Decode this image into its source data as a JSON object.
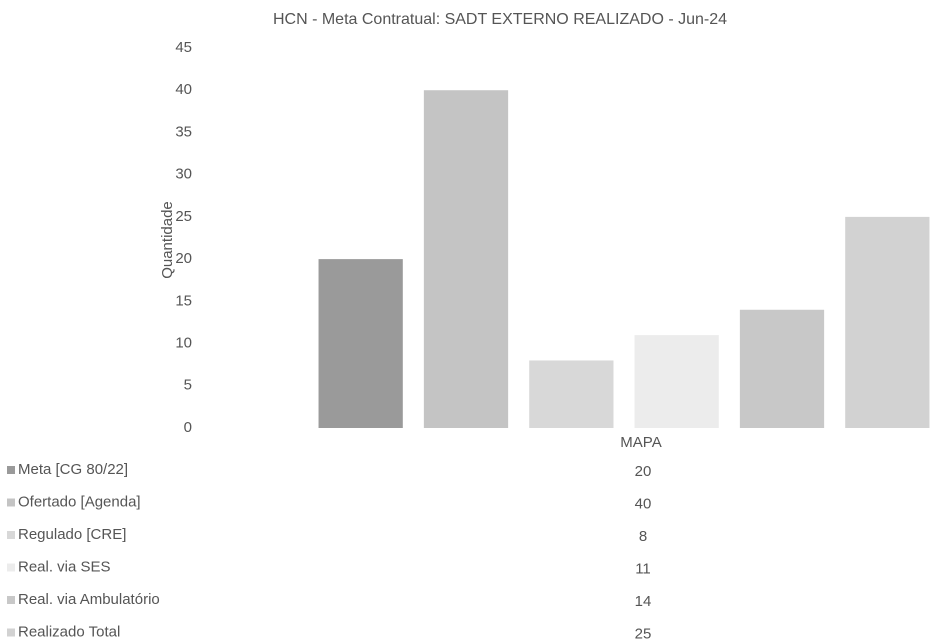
{
  "chart_data": {
    "type": "bar",
    "title": "HCN - Meta Contratual: SADT EXTERNO REALIZADO - Jun-24",
    "y_label": "Quantidade",
    "categories": [
      "MAPA"
    ],
    "series": [
      {
        "name": "Meta [CG 80/22]",
        "color": "#9a9a9a",
        "values": [
          20
        ]
      },
      {
        "name": "Ofertado [Agenda]",
        "color": "#c4c4c4",
        "values": [
          40
        ]
      },
      {
        "name": "Regulado [CRE]",
        "color": "#d8d8d8",
        "values": [
          8
        ]
      },
      {
        "name": "Real. via SES",
        "color": "#ececec",
        "values": [
          11
        ]
      },
      {
        "name": "Real. via Ambulatório",
        "color": "#c8c8c8",
        "values": [
          14
        ]
      },
      {
        "name": "Realizado Total",
        "color": "#d2d2d2",
        "values": [
          25
        ]
      }
    ],
    "ylim": [
      0,
      45
    ],
    "yticks": [
      0,
      5,
      10,
      15,
      20,
      25,
      30,
      35,
      40,
      45
    ]
  }
}
